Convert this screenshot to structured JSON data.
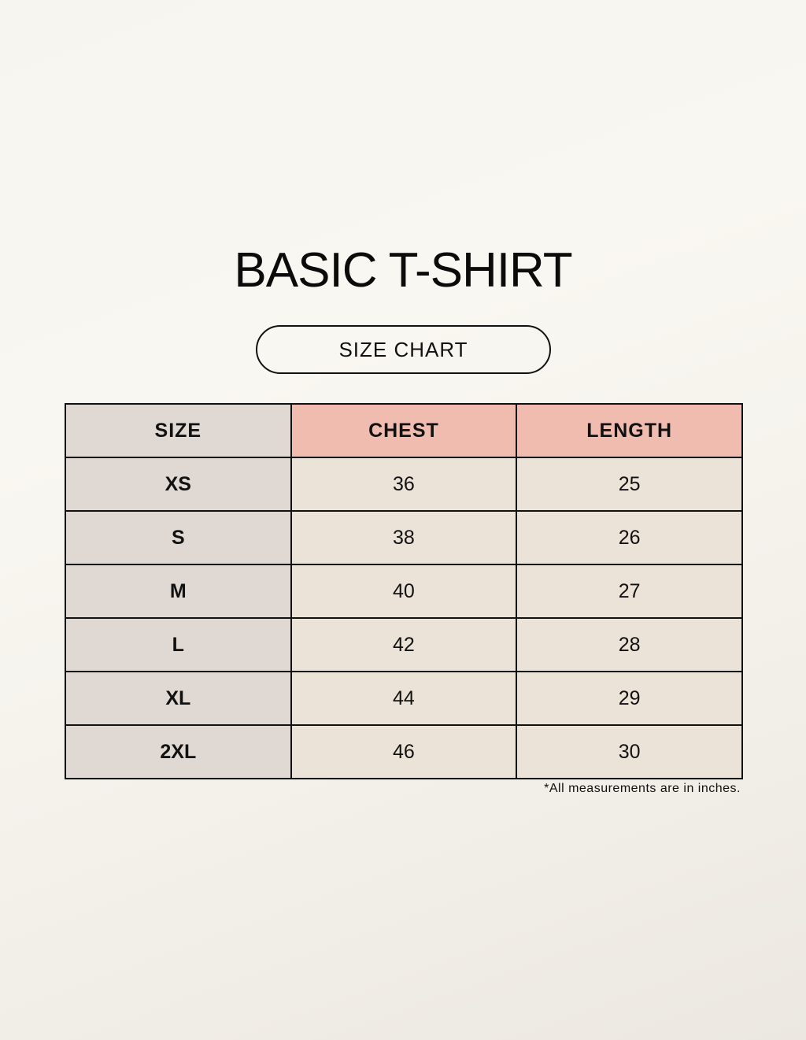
{
  "title": "BASIC T-SHIRT",
  "subtitle": "SIZE CHART",
  "table": {
    "headers": [
      "SIZE",
      "CHEST",
      "LENGTH"
    ],
    "rows": [
      [
        "XS",
        "36",
        "25"
      ],
      [
        "S",
        "38",
        "26"
      ],
      [
        "M",
        "40",
        "27"
      ],
      [
        "L",
        "42",
        "28"
      ],
      [
        "XL",
        "44",
        "29"
      ],
      [
        "2XL",
        "46",
        "30"
      ]
    ]
  },
  "note": "*All measurements are in inches.",
  "colors": {
    "header_accent": "#efbcaf",
    "size_column": "#e0d8d2",
    "value_cells": "#ebe2d8"
  }
}
